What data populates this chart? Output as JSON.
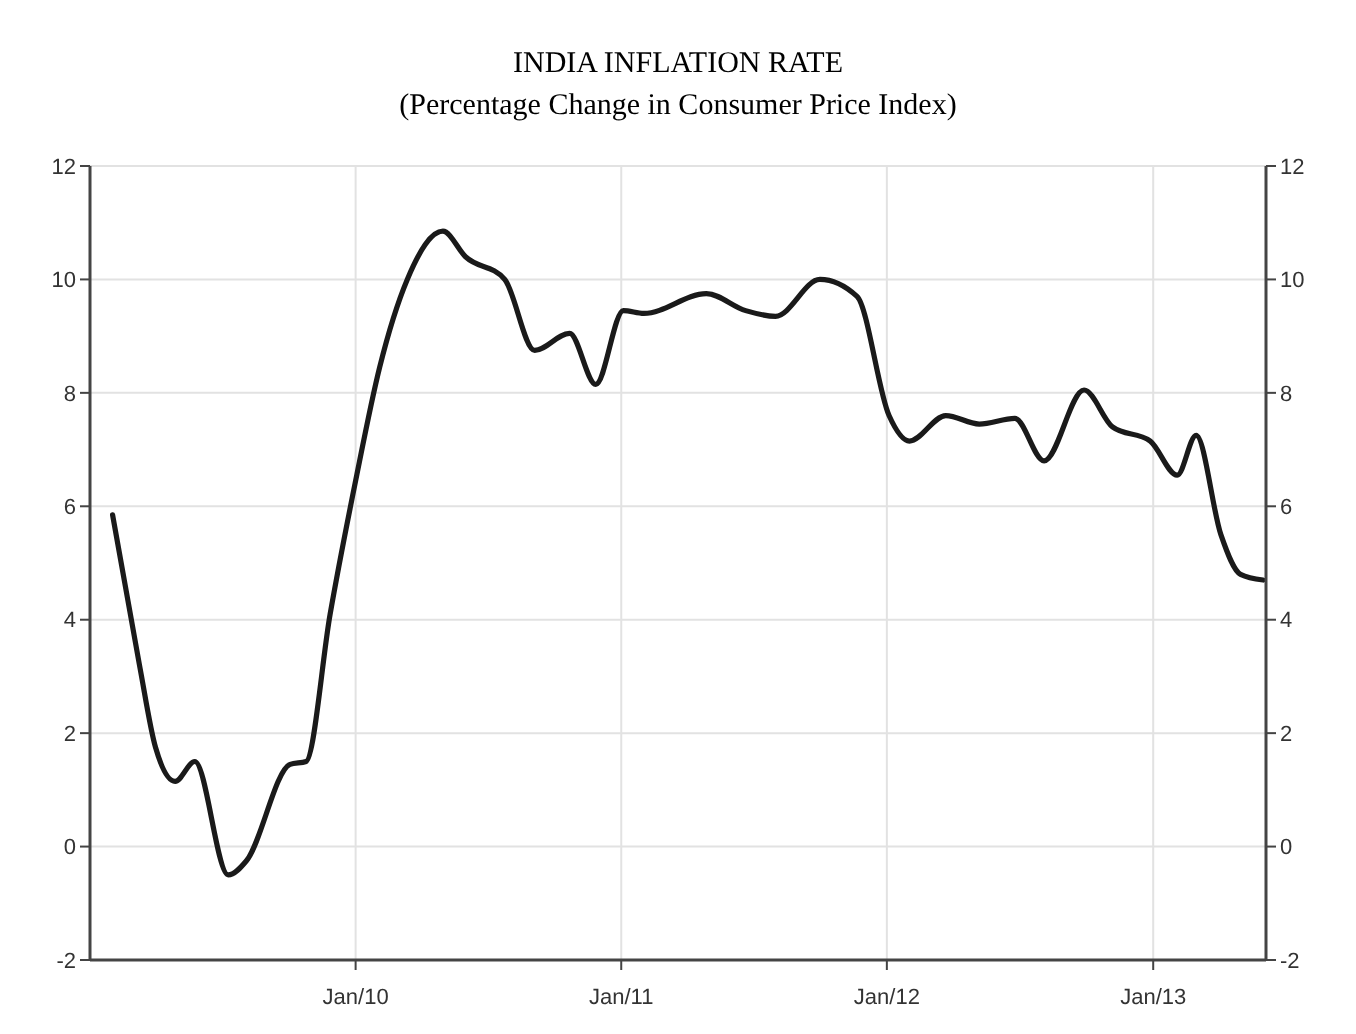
{
  "chart_data": {
    "type": "line",
    "title": "INDIA INFLATION RATE",
    "subtitle": "(Percentage Change in Consumer Price Index)",
    "series": [
      {
        "color": "#1a1a1a",
        "x": [
          "2009-02-01",
          "2009-03-10",
          "2009-04-01",
          "2009-04-28",
          "2009-05-25",
          "2009-07-10",
          "2009-08-04",
          "2009-10-03",
          "2009-10-25",
          "2009-11-27",
          "2010-01-01",
          "2010-02-03",
          "2010-03-13",
          "2010-05-01",
          "2010-06-01",
          "2010-07-25",
          "2010-09-04",
          "2010-10-22",
          "2010-11-27",
          "2011-01-04",
          "2011-02-01",
          "2011-04-28",
          "2011-06-21",
          "2011-08-01",
          "2011-10-01",
          "2011-11-21",
          "2012-01-04",
          "2012-02-01",
          "2012-03-22",
          "2012-05-07",
          "2012-06-25",
          "2012-08-04",
          "2012-09-28",
          "2012-11-06",
          "2012-12-28",
          "2013-02-03",
          "2013-03-01",
          "2013-04-04",
          "2013-05-01",
          "2013-06-01"
        ],
        "values": [
          5.85,
          3.2,
          1.75,
          1.15,
          1.5,
          -0.5,
          -0.25,
          1.45,
          1.5,
          4.1,
          6.45,
          8.45,
          10.0,
          10.85,
          10.4,
          10.0,
          8.75,
          9.05,
          8.15,
          9.45,
          9.4,
          9.75,
          9.45,
          9.35,
          10.0,
          9.7,
          7.6,
          7.15,
          7.6,
          7.45,
          7.55,
          6.8,
          8.05,
          7.4,
          7.15,
          6.55,
          7.25,
          5.5,
          4.8,
          4.7
        ]
      }
    ],
    "xlim": [
      "2009-01-01",
      "2013-06-05"
    ],
    "xticks": [
      {
        "value": "2010-01-01",
        "label": "Jan/10"
      },
      {
        "value": "2011-01-01",
        "label": "Jan/11"
      },
      {
        "value": "2012-01-01",
        "label": "Jan/12"
      },
      {
        "value": "2013-01-01",
        "label": "Jan/13"
      }
    ],
    "ylim": [
      -2,
      12
    ],
    "yticks": [
      -2,
      0,
      2,
      4,
      6,
      8,
      10,
      12
    ],
    "y2lim": [
      -2,
      12
    ],
    "y2ticks": [
      -2,
      0,
      2,
      4,
      6,
      8,
      10,
      12
    ],
    "grid": true,
    "marker": "none",
    "line_style": "solid"
  }
}
